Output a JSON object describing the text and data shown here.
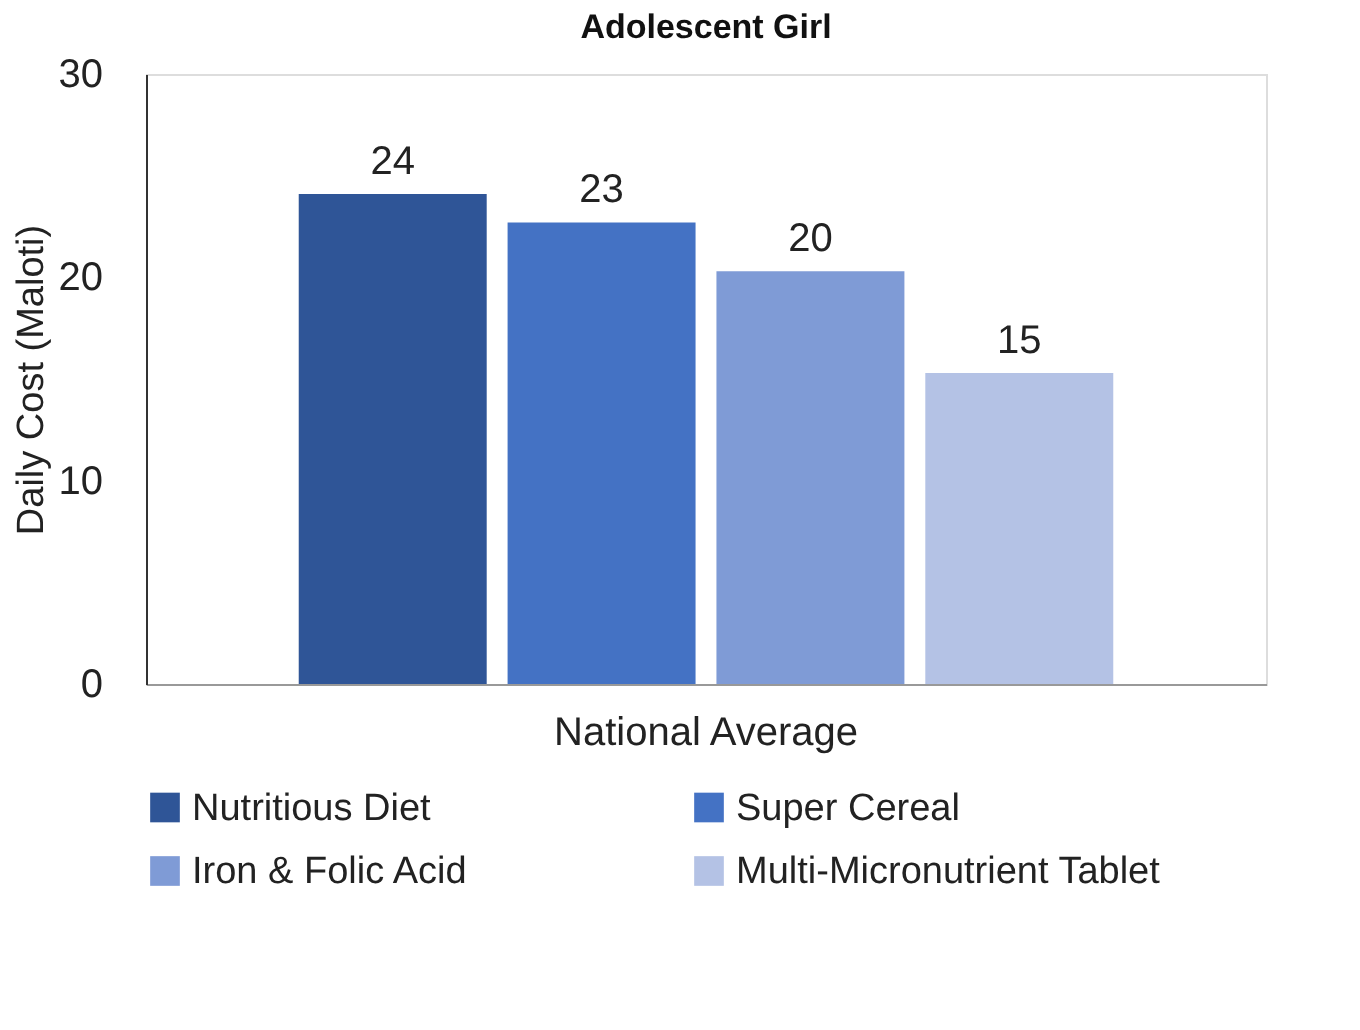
{
  "chart_data": {
    "type": "bar",
    "title": "Adolescent Girl",
    "ylabel": "Daily Cost (Maloti)",
    "categories": [
      "National Average"
    ],
    "series": [
      {
        "name": "Nutritious Diet",
        "color": "#2f5597",
        "values": [
          24.1
        ],
        "value_labels": [
          "24"
        ]
      },
      {
        "name": "Super Cereal",
        "color": "#4472c4",
        "values": [
          22.7
        ],
        "value_labels": [
          "23"
        ]
      },
      {
        "name": "Iron & Folic Acid",
        "color": "#7f9bd6",
        "values": [
          20.3
        ],
        "value_labels": [
          "20"
        ]
      },
      {
        "name": "Multi-Micronutrient Tablet",
        "color": "#b4c2e5",
        "values": [
          15.3
        ],
        "value_labels": [
          "15"
        ]
      }
    ],
    "ylim": [
      0,
      30
    ],
    "yticks": [
      0,
      10,
      20,
      30
    ],
    "grid": false,
    "legend": "bottom"
  }
}
